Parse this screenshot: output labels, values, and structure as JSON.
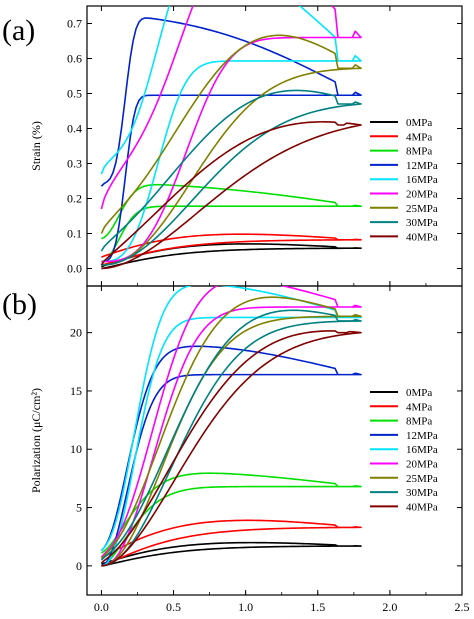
{
  "chart_data": [
    {
      "panel_label": "(a)",
      "type": "line",
      "ylabel": "Strain (%)",
      "xlim": [
        -0.1,
        2.5
      ],
      "ylim": [
        -0.05,
        0.75
      ],
      "x_ticks": [
        0.0,
        0.5,
        1.0,
        1.5,
        2.0,
        2.5
      ],
      "x_tick_labels": [
        "",
        "",
        "",
        "",
        "",
        ""
      ],
      "y_ticks": [
        0.0,
        0.1,
        0.2,
        0.3,
        0.4,
        0.5,
        0.6,
        0.7
      ],
      "y_tick_labels": [
        "0.0",
        "0.1",
        "0.2",
        "0.3",
        "0.4",
        "0.5",
        "0.6",
        "0.7"
      ],
      "legend_position": "right",
      "series": [
        {
          "name": "0MPa",
          "color": "#000000",
          "start": 0.0,
          "knee": 0.6,
          "sharp": 1.2,
          "max": 0.058,
          "lag": 0.02,
          "offset": 0.01
        },
        {
          "name": "4MPa",
          "color": "#ff0000",
          "start": 0.01,
          "knee": 0.6,
          "sharp": 1.2,
          "max": 0.082,
          "lag": 0.025,
          "offset": 0.045
        },
        {
          "name": "8MPa",
          "color": "#00e000",
          "start": 0.02,
          "knee": 0.2,
          "sharp": 2.0,
          "max": 0.178,
          "lag": 0.05,
          "offset": 0.13
        },
        {
          "name": "12MPa",
          "color": "#0022cc",
          "start": 0.02,
          "knee": 0.2,
          "sharp": 3.5,
          "max": 0.495,
          "lag": 0.18,
          "offset": 0.43
        },
        {
          "name": "16MPa",
          "color": "#00e5ff",
          "start": 0.02,
          "knee": 0.5,
          "sharp": 3.0,
          "max": 0.593,
          "lag": 0.32,
          "offset": 0.5
        },
        {
          "name": "20MPa",
          "color": "#ff00ff",
          "start": 0.02,
          "knee": 0.75,
          "sharp": 3.0,
          "max": 0.66,
          "lag": 0.38,
          "offset": 0.3
        },
        {
          "name": "25MPa",
          "color": "#808000",
          "start": 0.01,
          "knee": 0.95,
          "sharp": 2.2,
          "max": 0.572,
          "lag": 0.22,
          "offset": 0.18
        },
        {
          "name": "30MPa",
          "color": "#008080",
          "start": 0.01,
          "knee": 1.05,
          "sharp": 2.0,
          "max": 0.47,
          "lag": 0.15,
          "offset": 0.08
        },
        {
          "name": "40MPa",
          "color": "#800000",
          "start": 0.0,
          "knee": 1.25,
          "sharp": 1.8,
          "max": 0.41,
          "lag": 0.12,
          "offset": 0.02
        }
      ]
    },
    {
      "panel_label": "(b)",
      "type": "line",
      "xlabel": "Electric field (kV/mm)",
      "ylabel": "Polarization (μC/cm²)",
      "xlim": [
        -0.1,
        2.5
      ],
      "ylim": [
        -2.5,
        24
      ],
      "x_ticks": [
        0.0,
        0.5,
        1.0,
        1.5,
        2.0,
        2.5
      ],
      "x_tick_labels": [
        "0.0",
        "0.5",
        "1.0",
        "1.5",
        "2.0",
        "2.5"
      ],
      "y_ticks": [
        0,
        5,
        10,
        15,
        20
      ],
      "y_tick_labels": [
        "0",
        "5",
        "10",
        "15",
        "20"
      ],
      "legend_position": "right",
      "series": [
        {
          "name": "0MPa",
          "color": "#000000",
          "start": 0.0,
          "knee": 0.6,
          "sharp": 1.2,
          "max": 1.7,
          "lag": 0.5,
          "offset": 0.3
        },
        {
          "name": "4MPa",
          "color": "#ff0000",
          "start": 0.0,
          "knee": 0.6,
          "sharp": 1.2,
          "max": 3.3,
          "lag": 1.0,
          "offset": 1.3
        },
        {
          "name": "8MPa",
          "color": "#00e000",
          "start": 0.0,
          "knee": 0.35,
          "sharp": 1.6,
          "max": 6.8,
          "lag": 1.2,
          "offset": 2.2
        },
        {
          "name": "12MPa",
          "color": "#0022cc",
          "start": 0.0,
          "knee": 0.3,
          "sharp": 2.0,
          "max": 16.4,
          "lag": 2.5,
          "offset": 2.6
        },
        {
          "name": "16MPa",
          "color": "#00e5ff",
          "start": 0.0,
          "knee": 0.35,
          "sharp": 2.2,
          "max": 21.3,
          "lag": 3.0,
          "offset": 2.6
        },
        {
          "name": "20MPa",
          "color": "#ff00ff",
          "start": 0.0,
          "knee": 0.55,
          "sharp": 2.2,
          "max": 22.2,
          "lag": 3.0,
          "offset": 1.5
        },
        {
          "name": "25MPa",
          "color": "#808000",
          "start": 0.0,
          "knee": 0.7,
          "sharp": 2.0,
          "max": 21.4,
          "lag": 3.0,
          "offset": 1.2
        },
        {
          "name": "30MPa",
          "color": "#008080",
          "start": 0.0,
          "knee": 0.8,
          "sharp": 2.0,
          "max": 21.0,
          "lag": 2.5,
          "offset": 1.0
        },
        {
          "name": "40MPa",
          "color": "#800000",
          "start": 0.0,
          "knee": 0.95,
          "sharp": 1.8,
          "max": 20.0,
          "lag": 2.0,
          "offset": 0.5
        }
      ]
    }
  ]
}
